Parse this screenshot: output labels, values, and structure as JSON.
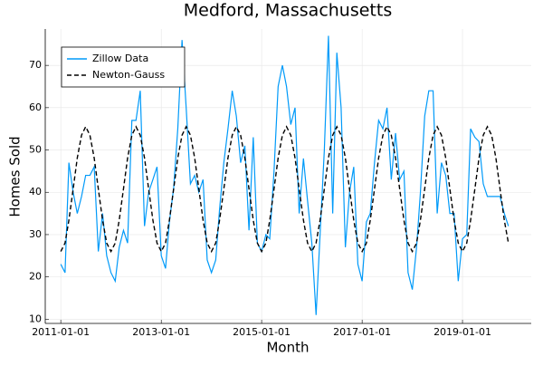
{
  "chart_data": {
    "type": "line",
    "title": "Medford, Massachusetts",
    "x_label": "Month",
    "y_label": "Homes Sold",
    "x": [
      "2011-01-01",
      "2011-02-01",
      "2011-03-01",
      "2011-04-01",
      "2011-05-01",
      "2011-06-01",
      "2011-07-01",
      "2011-08-01",
      "2011-09-01",
      "2011-10-01",
      "2011-11-01",
      "2011-12-01",
      "2012-01-01",
      "2012-02-01",
      "2012-03-01",
      "2012-04-01",
      "2012-05-01",
      "2012-06-01",
      "2012-07-01",
      "2012-08-01",
      "2012-09-01",
      "2012-10-01",
      "2012-11-01",
      "2012-12-01",
      "2013-01-01",
      "2013-02-01",
      "2013-03-01",
      "2013-04-01",
      "2013-05-01",
      "2013-06-01",
      "2013-07-01",
      "2013-08-01",
      "2013-09-01",
      "2013-10-01",
      "2013-11-01",
      "2013-12-01",
      "2014-01-01",
      "2014-02-01",
      "2014-03-01",
      "2014-04-01",
      "2014-05-01",
      "2014-06-01",
      "2014-07-01",
      "2014-08-01",
      "2014-09-01",
      "2014-10-01",
      "2014-11-01",
      "2014-12-01",
      "2015-01-01",
      "2015-02-01",
      "2015-03-01",
      "2015-04-01",
      "2015-05-01",
      "2015-06-01",
      "2015-07-01",
      "2015-08-01",
      "2015-09-01",
      "2015-10-01",
      "2015-11-01",
      "2015-12-01",
      "2016-01-01",
      "2016-02-01",
      "2016-03-01",
      "2016-04-01",
      "2016-05-01",
      "2016-06-01",
      "2016-07-01",
      "2016-08-01",
      "2016-09-01",
      "2016-10-01",
      "2016-11-01",
      "2016-12-01",
      "2017-01-01",
      "2017-02-01",
      "2017-03-01",
      "2017-04-01",
      "2017-05-01",
      "2017-06-01",
      "2017-07-01",
      "2017-08-01",
      "2017-09-01",
      "2017-10-01",
      "2017-11-01",
      "2017-12-01",
      "2018-01-01",
      "2018-02-01",
      "2018-03-01",
      "2018-04-01",
      "2018-05-01",
      "2018-06-01",
      "2018-07-01",
      "2018-08-01",
      "2018-09-01",
      "2018-10-01",
      "2018-11-01",
      "2018-12-01",
      "2019-01-01",
      "2019-02-01",
      "2019-03-01",
      "2019-04-01",
      "2019-05-01",
      "2019-06-01",
      "2019-07-01",
      "2019-08-01",
      "2019-09-01",
      "2019-10-01",
      "2019-11-01",
      "2019-12-01"
    ],
    "series": [
      {
        "name": "Zillow Data",
        "color": "#009af9",
        "dash": false,
        "values": [
          23,
          21,
          47,
          40,
          35,
          39,
          44,
          44,
          46,
          26,
          35,
          25,
          21,
          19,
          27,
          31,
          28,
          57,
          57,
          64,
          32,
          40,
          43,
          46,
          25,
          22,
          33,
          41,
          55,
          76,
          60,
          42,
          44,
          40,
          43,
          24,
          21,
          24,
          36,
          47,
          55,
          64,
          58,
          47,
          51,
          31,
          53,
          28,
          26,
          30,
          29,
          45,
          65,
          70,
          65,
          56,
          60,
          35,
          48,
          38,
          28,
          11,
          30,
          50,
          77,
          35,
          73,
          60,
          27,
          40,
          46,
          23,
          19,
          33,
          35,
          47,
          57,
          55,
          60,
          43,
          54,
          43,
          45,
          21,
          17,
          27,
          40,
          58,
          64,
          64,
          35,
          47,
          44,
          35,
          35,
          19,
          29,
          30,
          55,
          53,
          52,
          42,
          39,
          39,
          39,
          39,
          35,
          32
        ]
      },
      {
        "name": "Newton-Gauss",
        "color": "#000000",
        "dash": true,
        "values": [
          26,
          28,
          33.4,
          40.8,
          48.1,
          53.5,
          55.5,
          53.5,
          48.1,
          40.8,
          33.4,
          28,
          26,
          28,
          33.4,
          40.8,
          48.1,
          53.5,
          55.5,
          53.5,
          48.1,
          40.8,
          33.4,
          28,
          26,
          28,
          33.4,
          40.8,
          48.1,
          53.5,
          55.5,
          53.5,
          48.1,
          40.8,
          33.4,
          28,
          26,
          28,
          33.4,
          40.8,
          48.1,
          53.5,
          55.5,
          53.5,
          48.1,
          40.8,
          33.4,
          28,
          26,
          28,
          33.4,
          40.8,
          48.1,
          53.5,
          55.5,
          53.5,
          48.1,
          40.8,
          33.4,
          28,
          26,
          28,
          33.4,
          40.8,
          48.1,
          53.5,
          55.5,
          53.5,
          48.1,
          40.8,
          33.4,
          28,
          26,
          28,
          33.4,
          40.8,
          48.1,
          53.5,
          55.5,
          53.5,
          48.1,
          40.8,
          33.4,
          28,
          26,
          28,
          33.4,
          40.8,
          48.1,
          53.5,
          55.5,
          53.5,
          48.1,
          40.8,
          33.4,
          28,
          26,
          28,
          33.4,
          40.8,
          48.1,
          53.5,
          55.5,
          53.5,
          48.1,
          40.8,
          33.4,
          28
        ]
      }
    ],
    "xlim": [
      "2010-09-10",
      "2020-05-15"
    ],
    "xticks": [
      "2011-01-01",
      "2013-01-01",
      "2015-01-01",
      "2017-01-01",
      "2019-01-01"
    ],
    "ylim": [
      9,
      78.6
    ],
    "yticks": [
      10,
      20,
      30,
      40,
      50,
      60,
      70
    ],
    "grid": true,
    "legend": "top-left"
  }
}
